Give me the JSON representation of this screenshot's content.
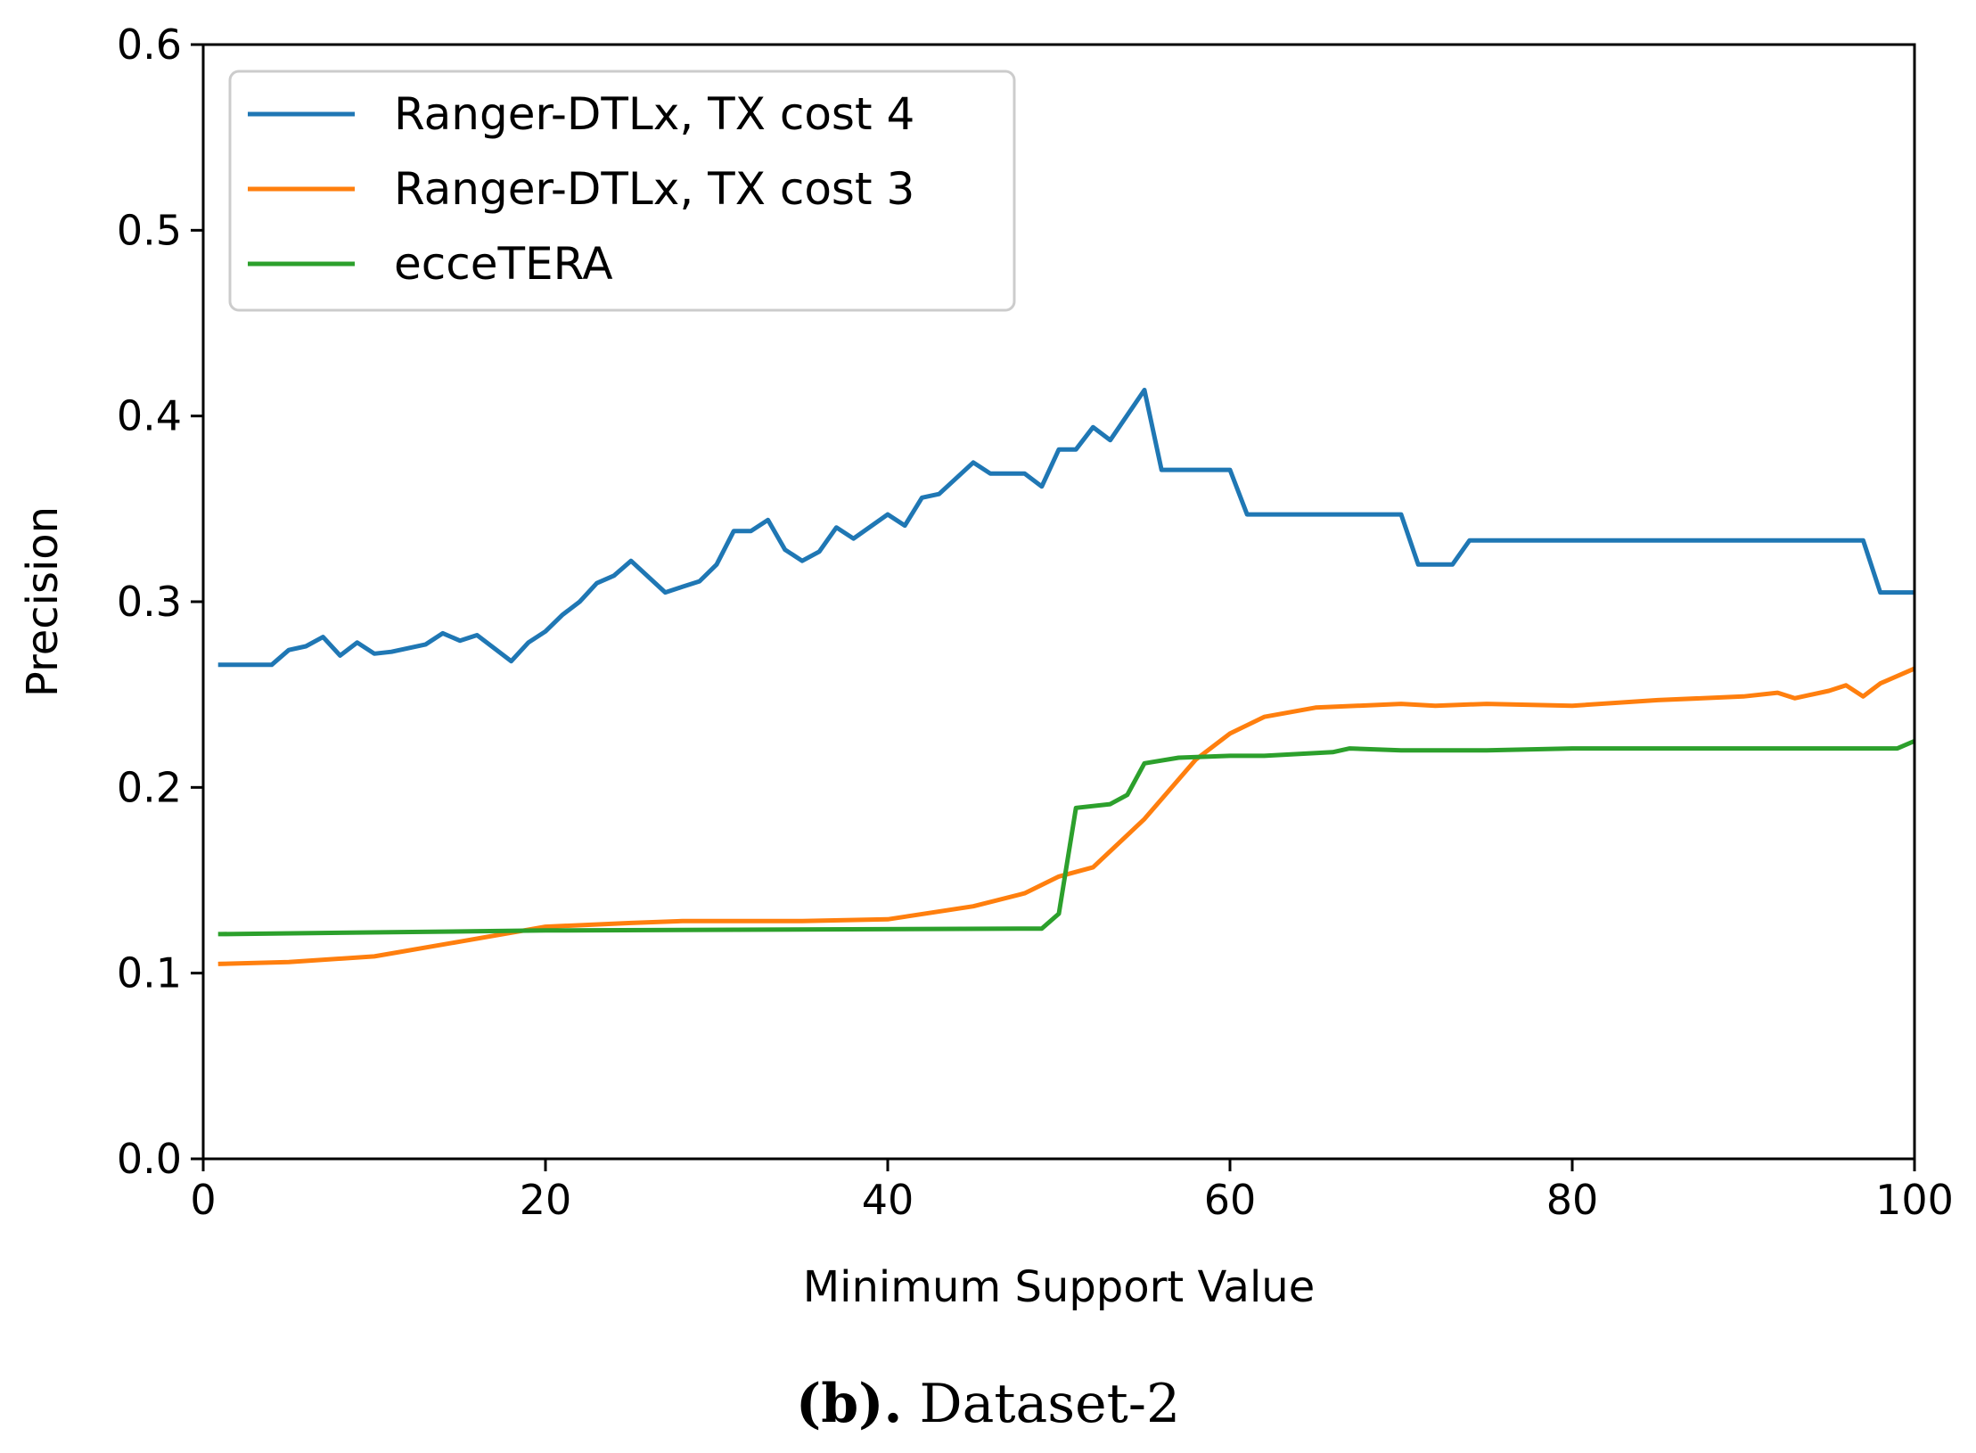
{
  "chart_data": {
    "type": "line",
    "title": "",
    "xlabel": "Minimum Support Value",
    "ylabel": "Precision",
    "xlim": [
      0,
      100
    ],
    "ylim": [
      0.0,
      0.6
    ],
    "xticks": [
      0,
      20,
      40,
      60,
      80,
      100
    ],
    "xtick_labels": [
      "0",
      "20",
      "40",
      "60",
      "80",
      "100"
    ],
    "yticks": [
      0.0,
      0.1,
      0.2,
      0.3,
      0.4,
      0.5,
      0.6
    ],
    "ytick_labels": [
      "0.0",
      "0.1",
      "0.2",
      "0.3",
      "0.4",
      "0.5",
      "0.6"
    ],
    "grid": false,
    "legend_position": "top-left",
    "series": [
      {
        "name": "Ranger-DTLx, TX cost 4",
        "color": "#1f77b4",
        "x": [
          1,
          4,
          5,
          6,
          7,
          8,
          9,
          10,
          11,
          12,
          13,
          14,
          15,
          16,
          18,
          19,
          20,
          21,
          22,
          23,
          24,
          25,
          27,
          28,
          29,
          30,
          31,
          32,
          33,
          34,
          35,
          36,
          37,
          38,
          40,
          41,
          42,
          43,
          45,
          46,
          48,
          49,
          50,
          51,
          52,
          53,
          55,
          56,
          57,
          58,
          59,
          60,
          61,
          62,
          63,
          64,
          65,
          66,
          67,
          68,
          69,
          70,
          71,
          72,
          73,
          74,
          75,
          96,
          97,
          98,
          99,
          100
        ],
        "y": [
          0.266,
          0.266,
          0.274,
          0.276,
          0.281,
          0.271,
          0.278,
          0.272,
          0.273,
          0.275,
          0.277,
          0.283,
          0.279,
          0.282,
          0.268,
          0.278,
          0.284,
          0.293,
          0.3,
          0.31,
          0.314,
          0.322,
          0.305,
          0.308,
          0.311,
          0.32,
          0.338,
          0.338,
          0.344,
          0.328,
          0.322,
          0.327,
          0.34,
          0.334,
          0.347,
          0.341,
          0.356,
          0.358,
          0.375,
          0.369,
          0.369,
          0.362,
          0.382,
          0.382,
          0.394,
          0.387,
          0.414,
          0.371,
          0.371,
          0.371,
          0.371,
          0.371,
          0.347,
          0.347,
          0.347,
          0.347,
          0.347,
          0.347,
          0.347,
          0.347,
          0.347,
          0.347,
          0.32,
          0.32,
          0.32,
          0.333,
          0.333,
          0.333,
          0.333,
          0.305,
          0.305,
          0.305
        ]
      },
      {
        "name": "Ranger-DTLx, TX cost 3",
        "color": "#ff7f0e",
        "x": [
          1,
          5,
          10,
          15,
          20,
          25,
          28,
          30,
          35,
          40,
          45,
          48,
          50,
          52,
          55,
          58,
          60,
          62,
          65,
          70,
          72,
          75,
          80,
          85,
          90,
          92,
          93,
          95,
          96,
          97,
          98,
          100
        ],
        "y": [
          0.105,
          0.106,
          0.109,
          0.117,
          0.125,
          0.127,
          0.128,
          0.128,
          0.128,
          0.129,
          0.136,
          0.143,
          0.152,
          0.157,
          0.183,
          0.215,
          0.229,
          0.238,
          0.243,
          0.245,
          0.244,
          0.245,
          0.244,
          0.247,
          0.249,
          0.251,
          0.248,
          0.252,
          0.255,
          0.249,
          0.256,
          0.264
        ]
      },
      {
        "name": "ecceTERA",
        "color": "#2ca02c",
        "x": [
          1,
          20,
          49,
          50,
          51,
          53,
          54,
          55,
          57,
          60,
          62,
          66,
          67,
          70,
          75,
          80,
          90,
          95,
          99,
          100
        ],
        "y": [
          0.121,
          0.123,
          0.124,
          0.132,
          0.189,
          0.191,
          0.196,
          0.213,
          0.216,
          0.217,
          0.217,
          0.219,
          0.221,
          0.22,
          0.22,
          0.221,
          0.221,
          0.221,
          0.221,
          0.225
        ]
      }
    ]
  },
  "caption": {
    "label": "(b).",
    "text": "Dataset-2"
  }
}
